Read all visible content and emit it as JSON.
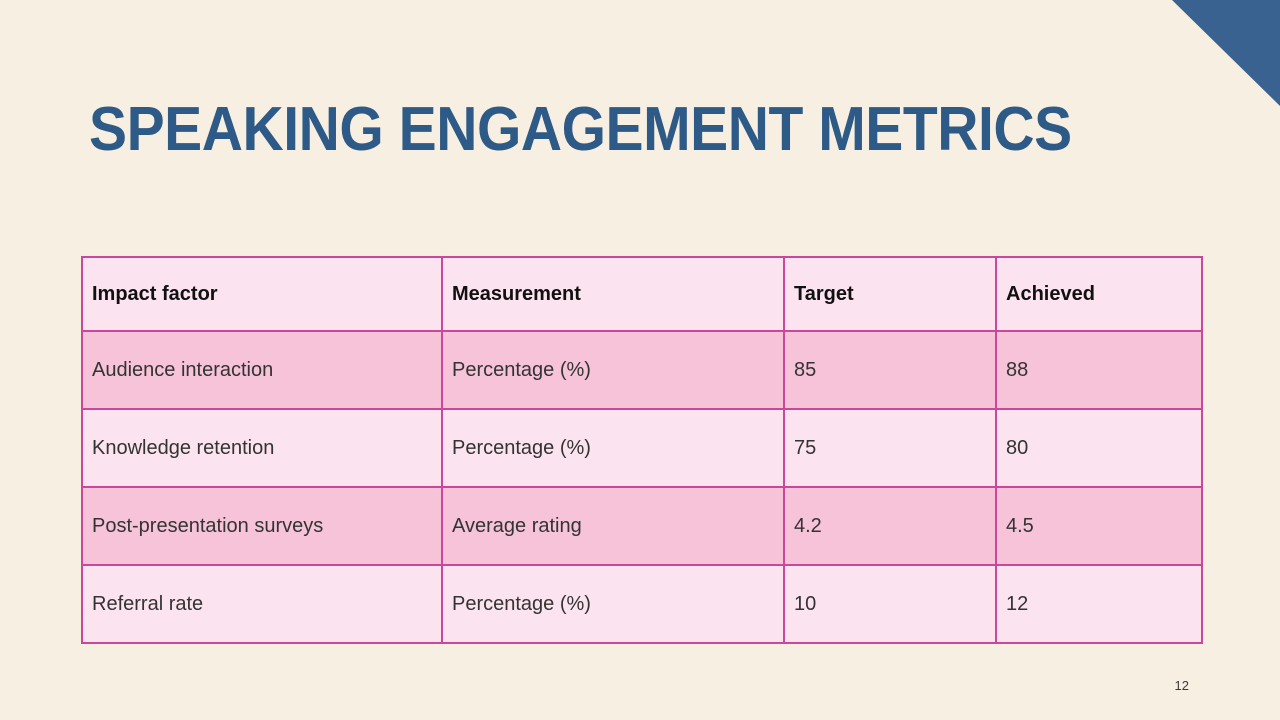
{
  "slide": {
    "title": "SPEAKING ENGAGEMENT METRICS",
    "page_number": "12"
  },
  "colors": {
    "background": "#F7EFE2",
    "accent_triangle": "#3A6290",
    "title_text": "#2D5A86",
    "table_border": "#C9489B",
    "row_light": "#FBE4EF",
    "row_dark": "#F6C3D9",
    "header_text": "#111111",
    "body_text": "#333333"
  },
  "table": {
    "columns": [
      "Impact factor",
      "Measurement",
      "Target",
      "Achieved"
    ],
    "rows": [
      [
        "Audience interaction",
        "Percentage (%)",
        "85",
        "88"
      ],
      [
        "Knowledge retention",
        "Percentage (%)",
        "75",
        "80"
      ],
      [
        "Post-presentation surveys",
        "Average rating",
        "4.2",
        "4.5"
      ],
      [
        "Referral rate",
        "Percentage (%)",
        "10",
        "12"
      ]
    ]
  }
}
